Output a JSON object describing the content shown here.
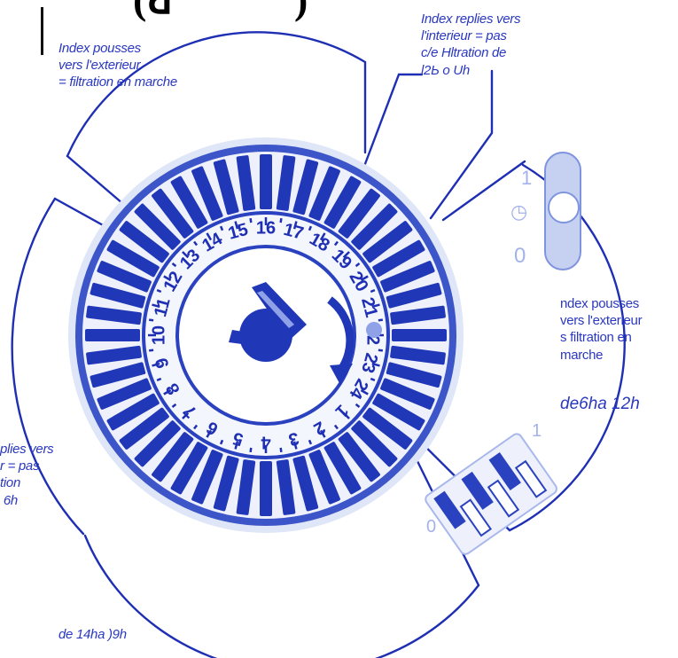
{
  "heading_fragment": "(ꓒ          ) ",
  "colors": {
    "ink": "#2a38c0",
    "dial_dark": "#2038b8",
    "dial_light": "#cfd8f4"
  },
  "dial": {
    "hour_numbers": [
      "1",
      "2",
      "3",
      "4",
      "5",
      "6",
      "7",
      "8",
      "9",
      "10",
      "11",
      "12",
      "13",
      "14",
      "15",
      "16",
      "17",
      "18",
      "19",
      "20",
      "21",
      "22",
      "23",
      "24"
    ],
    "segment_count": 48
  },
  "switch": {
    "labels": [
      "1",
      "◷",
      "0"
    ]
  },
  "notes": {
    "top_left": "Index pousses\nvers l'exterieur\n= filtration en marche",
    "top_right": "Index replies vers\nl'interieur = pas\nc/e Hltration de\nl2Ь o Uh",
    "right": "ndex pousses\nvers l'exterieur\ns filtration en\nmarche",
    "right_hours": "de6ha 12h",
    "bottom_left": "plies vers\nr = pas\ntion\n 6h",
    "bottom": "de 14ha )9h"
  },
  "wheel_labels": {
    "one": "1",
    "zero": "0"
  }
}
